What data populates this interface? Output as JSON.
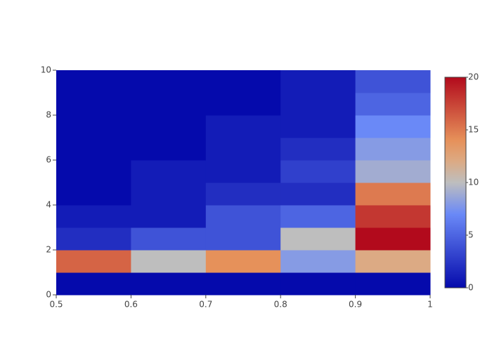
{
  "chart_data": {
    "type": "heatmap",
    "xbins": [
      0.5,
      0.6,
      0.7,
      0.8,
      0.9,
      1
    ],
    "ybins": [
      0,
      1,
      2,
      3,
      4,
      5,
      6,
      7,
      8,
      9,
      10
    ],
    "z": [
      [
        0,
        0,
        0,
        0,
        0
      ],
      [
        16,
        10,
        14,
        8,
        12
      ],
      [
        2,
        4,
        4,
        10,
        20
      ],
      [
        1,
        1,
        4,
        5,
        18
      ],
      [
        0,
        1,
        2,
        2,
        15
      ],
      [
        0,
        1,
        1,
        3,
        9
      ],
      [
        0,
        0,
        1,
        2,
        8
      ],
      [
        0,
        0,
        1,
        1,
        7
      ],
      [
        0,
        0,
        0,
        1,
        5
      ],
      [
        0,
        0,
        0,
        1,
        4
      ]
    ],
    "xlim": [
      0.5,
      1
    ],
    "xticks": [
      0.5,
      0.6,
      0.7,
      0.8,
      0.9,
      1
    ],
    "ylim": [
      0,
      10
    ],
    "yticks": [
      0,
      2,
      4,
      6,
      8,
      10
    ],
    "zlim": [
      0,
      20
    ],
    "zticks": [
      0,
      5,
      10,
      15,
      20
    ],
    "colorscale": [
      [
        0,
        "rgb(5,10,172)"
      ],
      [
        0.35,
        "rgb(106,137,247)"
      ],
      [
        0.5,
        "rgb(190,190,190)"
      ],
      [
        0.6,
        "rgb(220,170,132)"
      ],
      [
        0.7,
        "rgb(230,145,90)"
      ],
      [
        1,
        "rgb(178,10,28)"
      ]
    ]
  }
}
